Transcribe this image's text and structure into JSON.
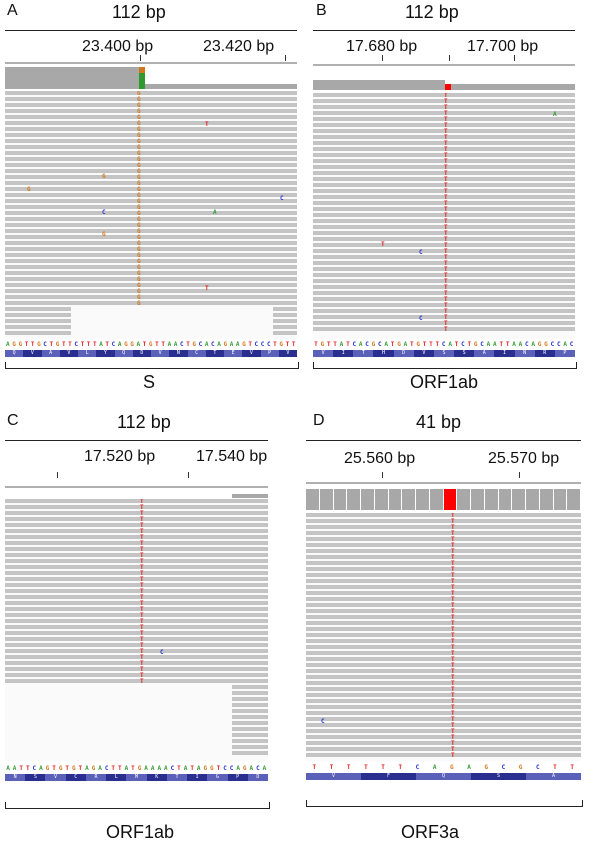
{
  "panels": {
    "A": {
      "letter": "A",
      "span": "112 bp",
      "pos1": "23.400 bp",
      "pos2": "23.420 bp",
      "gene": "S",
      "sequence": "AGGTTGCTGTTCTTTATCAGGATGTTAACTGCACAGAAGTCCCTGTT",
      "aa": [
        "Q",
        "V",
        "A",
        "V",
        "L",
        "Y",
        "Q",
        "D",
        "V",
        "N",
        "C",
        "T",
        "E",
        "V",
        "P",
        "V"
      ],
      "variant_base": "G"
    },
    "B": {
      "letter": "B",
      "span": "112 bp",
      "pos1": "17.680 bp",
      "pos2": "17.700 bp",
      "gene": "ORF1ab",
      "sequence": "TGTTATCACGCATGATGTTTCATCTGCAATTAACAGGCCAC",
      "aa": [
        "V",
        "I",
        "T",
        "H",
        "D",
        "V",
        "S",
        "S",
        "A",
        "I",
        "N",
        "R",
        "P"
      ],
      "variant_base": "T"
    },
    "C": {
      "letter": "C",
      "span": "112 bp",
      "pos1": "17.520 bp",
      "pos2": "17.540 bp",
      "gene": "ORF1ab",
      "sequence": "AATTCAGTGTGTAGACTTATGAAAACTATAGGTCCAGACA",
      "aa": [
        "N",
        "S",
        "V",
        "C",
        "R",
        "L",
        "M",
        "K",
        "T",
        "I",
        "G",
        "P",
        "D"
      ],
      "variant_base": "T"
    },
    "D": {
      "letter": "D",
      "span": "41 bp",
      "pos1": "25.560 bp",
      "pos2": "25.570 bp",
      "gene": "ORF3a",
      "sequence": "TTTTTTCAGAGCGCTT",
      "aa": [
        "V",
        "F",
        "Q",
        "S",
        "A"
      ],
      "variant_base": "T"
    }
  },
  "colors": {
    "A": "#2e9a2e",
    "C": "#1f2fd0",
    "G": "#d2761c",
    "T": "#e02020",
    "variant_red": "#ff0000"
  }
}
